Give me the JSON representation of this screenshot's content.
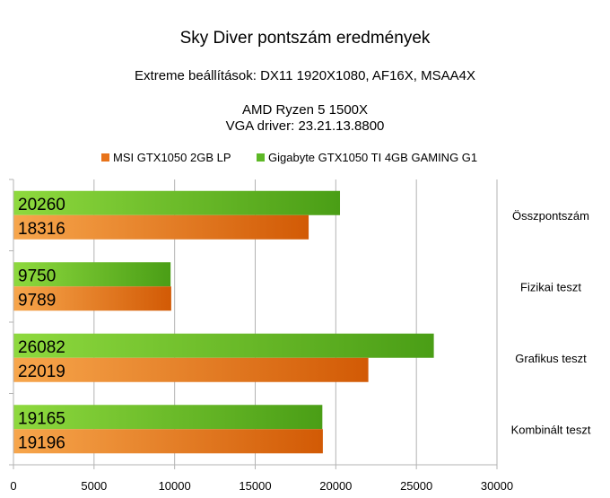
{
  "chart_data": {
    "type": "bar",
    "orientation": "horizontal",
    "title": "Sky Diver pontszám eredmények",
    "subtitle_lines": [
      "Extreme beállítások: DX11 1920X1080, AF16X, MSAA4X",
      "AMD Ryzen 5 1500X",
      "VGA driver: 23.21.13.8800"
    ],
    "categories": [
      "Összpontszám",
      "Fizikai teszt",
      "Grafikus teszt",
      "Kombinált teszt"
    ],
    "series": [
      {
        "name": "MSI GTX1050 2GB LP",
        "color": "#e8731a",
        "color_light": "#f7a64c",
        "color_dark": "#d25a05",
        "values": [
          18316,
          9789,
          22019,
          19196
        ]
      },
      {
        "name": "Gigabyte GTX1050 TI 4GB GAMING G1",
        "color": "#5db826",
        "color_light": "#8ed93e",
        "color_dark": "#4a9e16",
        "values": [
          20260,
          9750,
          26082,
          19165
        ]
      }
    ],
    "xlim": [
      0,
      30000
    ],
    "xticks": [
      0,
      5000,
      10000,
      15000,
      20000,
      25000,
      30000
    ],
    "grid": true,
    "legend_position": "top",
    "category_axis_position": "right",
    "data_labels": true
  }
}
